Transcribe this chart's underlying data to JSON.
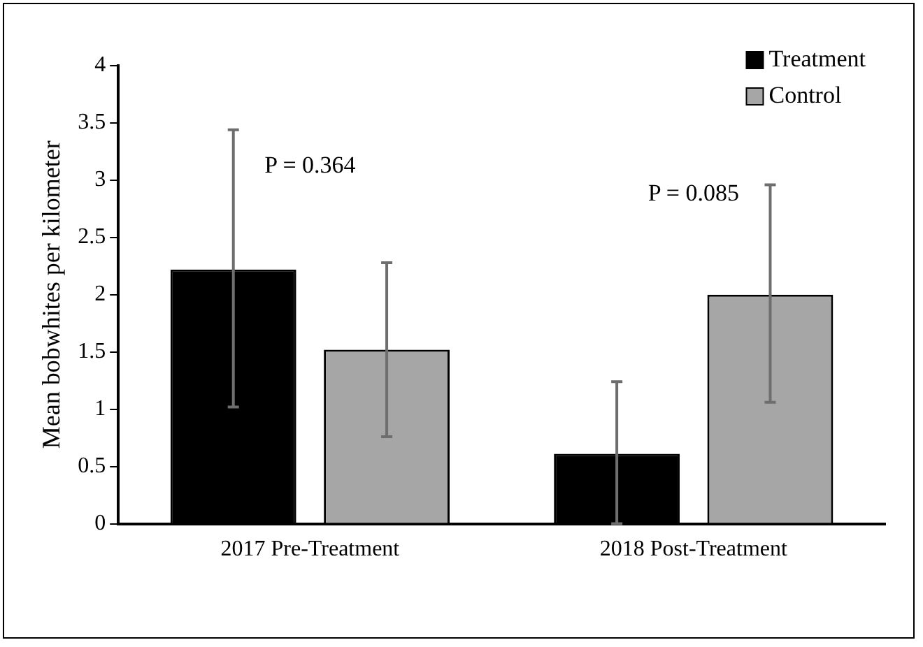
{
  "chart_data": {
    "type": "bar",
    "ylabel": "Mean bobwhites per kilometer",
    "categories": [
      "2017 Pre-Treatment",
      "2018 Post-Treatment"
    ],
    "series": [
      {
        "name": "Treatment",
        "color": "#000000",
        "values": [
          2.22,
          0.61
        ],
        "errors": [
          [
            1.02,
            3.44
          ],
          [
            0,
            1.24
          ]
        ]
      },
      {
        "name": "Control",
        "color": "#a6a6a6",
        "values": [
          1.52,
          2.0
        ],
        "errors": [
          [
            0.76,
            2.28
          ],
          [
            1.06,
            2.96
          ]
        ]
      }
    ],
    "ylim": [
      0,
      4
    ],
    "yticks": [
      0,
      0.5,
      1,
      1.5,
      2,
      2.5,
      3,
      3.5,
      4
    ],
    "annotations": [
      "P = 0.364",
      "P = 0.085"
    ],
    "legend": "top right",
    "grid": false
  }
}
